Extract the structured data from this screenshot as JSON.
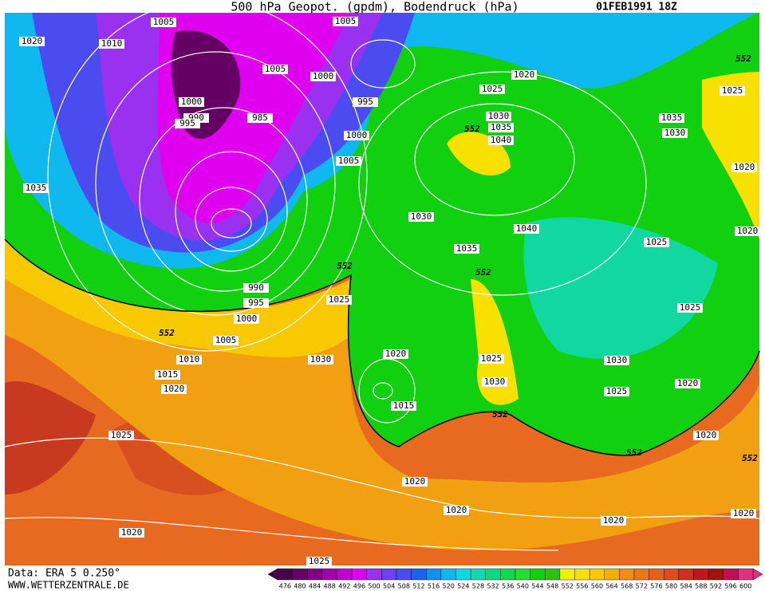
{
  "header": {
    "title": "500 hPa Geopot. (gpdm), Bodendruck (hPa)",
    "date": "01FEB1991 18Z"
  },
  "footer": {
    "source": "Data: ERA 5 0.250°",
    "website": "WWW.WETTERZENTRALE.DE"
  },
  "isobar_labels": [
    1005,
    1005,
    1020,
    1010,
    1005,
    1000,
    1020,
    1025,
    1025,
    995,
    1000,
    990,
    985,
    995,
    1030,
    1035,
    1035,
    1030,
    1000,
    1040,
    1005,
    1020,
    1035,
    1030,
    1040,
    1020,
    1025,
    1035,
    990,
    995,
    1025,
    1025,
    1000,
    1005,
    1020,
    1025,
    1010,
    1030,
    1030,
    1015,
    1030,
    1020,
    1025,
    1020,
    1015,
    1025,
    1020,
    1020,
    1020,
    1020,
    1020,
    1020,
    1025
  ],
  "geopotential_labels": [
    552,
    552,
    552,
    552,
    552,
    552,
    552,
    552
  ],
  "colorbar": {
    "levels": [
      476,
      480,
      484,
      488,
      492,
      496,
      500,
      504,
      508,
      512,
      516,
      520,
      524,
      528,
      532,
      536,
      540,
      544,
      548,
      552,
      556,
      560,
      564,
      568,
      572,
      576,
      580,
      584,
      588,
      592,
      596,
      600
    ],
    "colors": [
      "#4a0048",
      "#640064",
      "#800080",
      "#a000a8",
      "#c000d0",
      "#e000f0",
      "#9a30f0",
      "#7040f0",
      "#4a4cf0",
      "#2060f0",
      "#1090f0",
      "#10b8f0",
      "#10d8e0",
      "#10d8b0",
      "#10d880",
      "#10d850",
      "#20e030",
      "#10d010",
      "#30c010",
      "#f0f000",
      "#f8e000",
      "#f8c800",
      "#f0b000",
      "#f09010",
      "#e87818",
      "#e86020",
      "#e04a20",
      "#d03020",
      "#c01818",
      "#a81010",
      "#c01050",
      "#e03080"
    ]
  }
}
